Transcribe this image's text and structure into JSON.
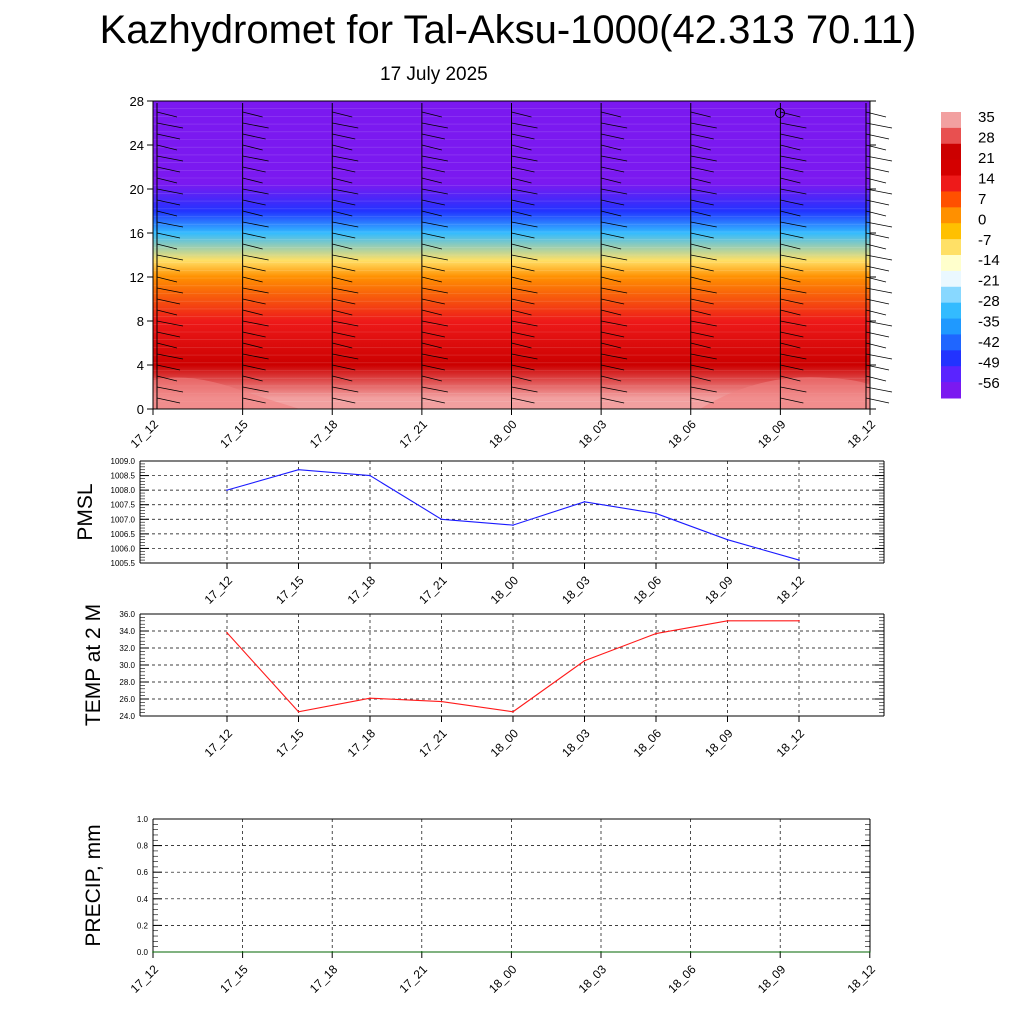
{
  "page": {
    "title": "Kazhydromet for Tal-Aksu-1000(42.313 70.11)",
    "date": "17 July 2025"
  },
  "colors": {
    "pmsl_line": "#1a1aff",
    "temp_line": "#ff1a1a",
    "precip_line": "#006400",
    "colorbar": [
      "#7b19f0",
      "#5a24ff",
      "#2233ff",
      "#1f66ff",
      "#1f99ff",
      "#33bbff",
      "#88d8ff",
      "#eaf8ff",
      "#ffffcc",
      "#ffe066",
      "#ffc000",
      "#ff9000",
      "#ff5000",
      "#ee1a1a",
      "#d40000",
      "#cc0000",
      "#e85050",
      "#f2a0a0"
    ]
  },
  "chart_data": [
    {
      "type": "heatmap",
      "title": "",
      "x": [
        "17_12",
        "17_15",
        "17_18",
        "17_21",
        "18_00",
        "18_03",
        "18_06",
        "18_09",
        "18_12"
      ],
      "ylim": [
        0,
        28
      ],
      "yticks": [
        0,
        4,
        8,
        12,
        16,
        20,
        24,
        28
      ],
      "colorbar_labels": [
        "35",
        "28",
        "21",
        "14",
        "7",
        "0",
        "-7",
        "-14",
        "-21",
        "-28",
        "-35",
        "-42",
        "-49",
        "-56"
      ],
      "levels_temperature": [
        {
          "level": 1,
          "value": 35
        },
        {
          "level": 4,
          "value": 25
        },
        {
          "level": 8,
          "value": 14
        },
        {
          "level": 12,
          "value": 2
        },
        {
          "level": 13.5,
          "value": -10
        },
        {
          "level": 16,
          "value": -30
        },
        {
          "level": 18,
          "value": -45
        },
        {
          "level": 20.5,
          "value": -56
        },
        {
          "level": 28,
          "value": -60
        }
      ]
    },
    {
      "type": "line",
      "ylabel": "PMSL",
      "x": [
        "17_12",
        "17_15",
        "17_18",
        "17_21",
        "18_00",
        "18_03",
        "18_06",
        "18_09",
        "18_12"
      ],
      "series": [
        {
          "values": [
            1008.0,
            1008.7,
            1008.5,
            1007.0,
            1006.8,
            1007.6,
            1007.2,
            1006.3,
            1005.6
          ]
        }
      ],
      "ylim": [
        1005.5,
        1009.0
      ],
      "yticks": [
        "1005.5",
        "1006.0",
        "1006.5",
        "1007.0",
        "1007.5",
        "1008.0",
        "1008.5",
        "1009.0"
      ],
      "grid": true
    },
    {
      "type": "line",
      "ylabel": "TEMP at 2 M",
      "x": [
        "17_12",
        "17_15",
        "17_18",
        "17_21",
        "18_00",
        "18_03",
        "18_06",
        "18_09",
        "18_12"
      ],
      "series": [
        {
          "values": [
            33.8,
            24.5,
            26.1,
            25.7,
            24.5,
            30.5,
            33.7,
            35.2,
            35.2
          ]
        }
      ],
      "ylim": [
        24.0,
        36.0
      ],
      "yticks": [
        "24.0",
        "26.0",
        "28.0",
        "30.0",
        "32.0",
        "34.0",
        "36.0"
      ],
      "grid": true
    },
    {
      "type": "line",
      "ylabel": "PRECIP, mm",
      "x": [
        "17_12",
        "17_15",
        "17_18",
        "17_21",
        "18_00",
        "18_03",
        "18_06",
        "18_09",
        "18_12"
      ],
      "series": [
        {
          "values": [
            0,
            0,
            0,
            0,
            0,
            0,
            0,
            0,
            0
          ]
        }
      ],
      "ylim": [
        0.0,
        1.0
      ],
      "yticks": [
        "0.0",
        "0.2",
        "0.4",
        "0.6",
        "0.8",
        "1.0"
      ],
      "grid": true
    }
  ]
}
